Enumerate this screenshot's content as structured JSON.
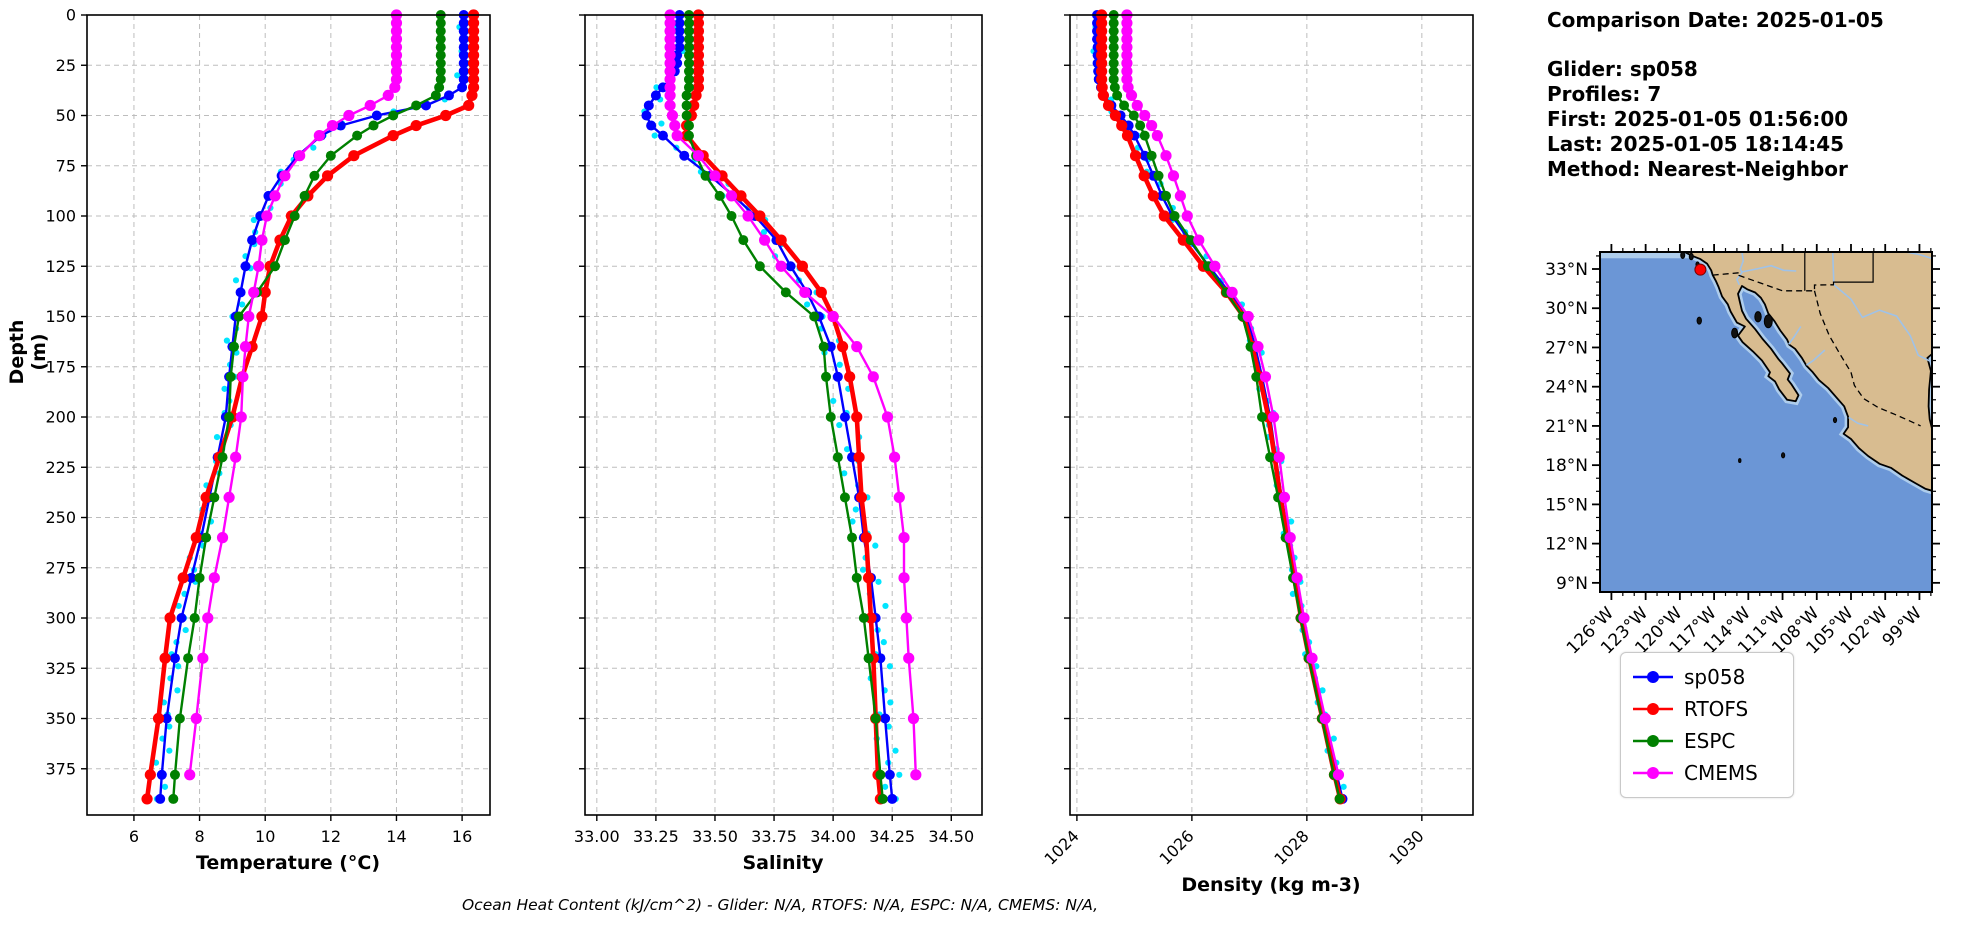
{
  "info_panel": {
    "comparison_date": "Comparison Date: 2025-01-05",
    "glider": "Glider: sp058",
    "profiles": "Profiles: 7",
    "first": "First: 2025-01-05 01:56:00",
    "last": "Last: 2025-01-05 18:14:45",
    "method": "Method: Nearest-Neighbor"
  },
  "bottom_note": "Ocean Heat Content (kJ/cm^2) - Glider: N/A,  RTOFS: N/A,  ESPC: N/A,  CMEMS: N/A,",
  "legend": {
    "items": [
      {
        "label": "sp058",
        "color": "#0000ff"
      },
      {
        "label": "RTOFS",
        "color": "#ff0000"
      },
      {
        "label": "ESPC",
        "color": "#008000"
      },
      {
        "label": "CMEMS",
        "color": "#ff00ff"
      }
    ]
  },
  "chart_data": {
    "type": "line",
    "ylabel": "Depth (m)",
    "ylim": [
      0,
      398
    ],
    "yticks": [
      0,
      25,
      50,
      75,
      100,
      125,
      150,
      175,
      200,
      225,
      250,
      275,
      300,
      325,
      350,
      375
    ],
    "grid": true,
    "depths": [
      0,
      4,
      8,
      12,
      16,
      20,
      24,
      28,
      32,
      36,
      40,
      45,
      50,
      55,
      60,
      70,
      80,
      90,
      100,
      112,
      125,
      138,
      150,
      165,
      180,
      200,
      220,
      240,
      260,
      280,
      300,
      320,
      350,
      378,
      390
    ],
    "series_style": {
      "sp058": {
        "color": "#0000ff",
        "lw": 2.4,
        "r": 5.0
      },
      "RTOFS": {
        "color": "#ff0000",
        "lw": 4.6,
        "r": 5.6
      },
      "ESPC": {
        "color": "#008000",
        "lw": 2.4,
        "r": 5.0
      },
      "CMEMS": {
        "color": "#ff00ff",
        "lw": 2.4,
        "r": 5.6
      }
    },
    "charts": [
      {
        "id": "temperature",
        "xlabel": "Temperature (°C)",
        "xlim": [
          4.57,
          16.85
        ],
        "xticks": [
          6,
          8,
          10,
          12,
          14,
          16
        ],
        "xtick_labels": [
          "6",
          "8",
          "10",
          "12",
          "14",
          "16"
        ],
        "rotate_labels": false,
        "series": {
          "sp058": [
            16.05,
            16.05,
            16.05,
            16.05,
            16.05,
            16.05,
            16.05,
            16.05,
            16.05,
            16.0,
            15.6,
            14.9,
            13.4,
            12.3,
            11.7,
            11.0,
            10.5,
            10.1,
            9.85,
            9.6,
            9.4,
            9.25,
            9.1,
            9.0,
            8.9,
            8.8,
            8.55,
            8.3,
            8.05,
            7.75,
            7.45,
            7.25,
            7.0,
            6.85,
            6.8
          ],
          "RTOFS": [
            16.35,
            16.35,
            16.35,
            16.35,
            16.35,
            16.35,
            16.35,
            16.35,
            16.35,
            16.35,
            16.3,
            16.2,
            15.5,
            14.6,
            13.9,
            12.7,
            11.9,
            11.3,
            10.8,
            10.45,
            10.15,
            10.0,
            9.9,
            9.6,
            9.3,
            9.0,
            8.6,
            8.2,
            7.9,
            7.5,
            7.1,
            6.95,
            6.75,
            6.5,
            6.4
          ],
          "ESPC": [
            15.35,
            15.35,
            15.35,
            15.35,
            15.35,
            15.35,
            15.35,
            15.35,
            15.35,
            15.3,
            15.2,
            14.6,
            13.9,
            13.3,
            12.8,
            12.0,
            11.5,
            11.2,
            10.9,
            10.6,
            10.3,
            9.75,
            9.2,
            9.05,
            8.95,
            8.9,
            8.7,
            8.45,
            8.2,
            8.0,
            7.85,
            7.65,
            7.4,
            7.25,
            7.2
          ],
          "CMEMS": [
            14.0,
            14.0,
            14.0,
            14.0,
            14.0,
            14.0,
            14.0,
            14.0,
            14.0,
            13.95,
            13.75,
            13.2,
            12.55,
            12.05,
            11.65,
            11.05,
            10.6,
            10.3,
            10.05,
            9.9,
            9.8,
            9.65,
            9.5,
            9.4,
            9.32,
            9.27,
            9.1,
            8.9,
            8.7,
            8.45,
            8.25,
            8.1,
            7.9,
            7.7,
            null
          ]
        }
      },
      {
        "id": "salinity",
        "xlabel": "Salinity",
        "xlim": [
          32.95,
          34.63
        ],
        "xticks": [
          33.0,
          33.25,
          33.5,
          33.75,
          34.0,
          34.25,
          34.5
        ],
        "xtick_labels": [
          "33.00",
          "33.25",
          "33.50",
          "33.75",
          "34.00",
          "34.25",
          "34.50"
        ],
        "rotate_labels": false,
        "series": {
          "sp058": [
            33.35,
            33.35,
            33.35,
            33.35,
            33.35,
            33.34,
            33.34,
            33.33,
            33.31,
            33.28,
            33.25,
            33.22,
            33.21,
            33.23,
            33.28,
            33.37,
            33.48,
            33.58,
            33.67,
            33.76,
            33.82,
            33.89,
            33.94,
            33.99,
            34.02,
            34.05,
            34.08,
            34.11,
            34.13,
            34.16,
            34.18,
            34.2,
            34.22,
            34.24,
            34.25
          ],
          "RTOFS": [
            33.43,
            33.43,
            33.43,
            33.43,
            33.43,
            33.43,
            33.43,
            33.43,
            33.43,
            33.43,
            33.42,
            33.41,
            33.4,
            33.38,
            33.38,
            33.45,
            33.53,
            33.61,
            33.69,
            33.78,
            33.87,
            33.95,
            34.0,
            34.04,
            34.07,
            34.1,
            34.11,
            34.12,
            34.14,
            34.15,
            34.16,
            34.17,
            34.18,
            34.19,
            34.2
          ],
          "ESPC": [
            33.39,
            33.39,
            33.39,
            33.39,
            33.39,
            33.39,
            33.39,
            33.39,
            33.39,
            33.39,
            33.38,
            33.38,
            33.38,
            33.39,
            33.39,
            33.42,
            33.46,
            33.52,
            33.57,
            33.62,
            33.69,
            33.8,
            33.92,
            33.96,
            33.97,
            33.99,
            34.02,
            34.05,
            34.08,
            34.1,
            34.13,
            34.15,
            34.18,
            34.2,
            34.21
          ],
          "CMEMS": [
            33.31,
            33.31,
            33.31,
            33.31,
            33.31,
            33.31,
            33.31,
            33.31,
            33.31,
            33.31,
            33.31,
            33.31,
            33.32,
            33.33,
            33.34,
            33.43,
            33.5,
            33.57,
            33.64,
            33.71,
            33.78,
            33.88,
            34.0,
            34.1,
            34.17,
            34.23,
            34.26,
            34.28,
            34.3,
            34.3,
            34.31,
            34.32,
            34.34,
            34.35,
            null
          ]
        }
      },
      {
        "id": "density",
        "xlabel": "Density (kg m-3)",
        "xlim": [
          1023.88,
          1030.89
        ],
        "xticks": [
          1024,
          1026,
          1028,
          1030
        ],
        "xtick_labels": [
          "1024",
          "1026",
          "1028",
          "1030"
        ],
        "rotate_labels": true,
        "series": {
          "sp058": [
            1024.35,
            1024.35,
            1024.35,
            1024.35,
            1024.36,
            1024.36,
            1024.36,
            1024.37,
            1024.38,
            1024.42,
            1024.47,
            1024.6,
            1024.76,
            1024.9,
            1025.0,
            1025.18,
            1025.33,
            1025.48,
            1025.66,
            1025.95,
            1026.3,
            1026.65,
            1026.95,
            1027.1,
            1027.22,
            1027.36,
            1027.46,
            1027.56,
            1027.68,
            1027.8,
            1027.93,
            1028.07,
            1028.3,
            1028.52,
            1028.62
          ],
          "RTOFS": [
            1024.43,
            1024.43,
            1024.43,
            1024.43,
            1024.43,
            1024.43,
            1024.43,
            1024.43,
            1024.43,
            1024.44,
            1024.46,
            1024.55,
            1024.67,
            1024.78,
            1024.88,
            1025.02,
            1025.17,
            1025.33,
            1025.52,
            1025.85,
            1026.2,
            1026.6,
            1026.9,
            1027.05,
            1027.18,
            1027.33,
            1027.44,
            1027.54,
            1027.66,
            1027.78,
            1027.9,
            1028.04,
            1028.27,
            1028.48,
            1028.58
          ],
          "ESPC": [
            1024.64,
            1024.64,
            1024.64,
            1024.64,
            1024.64,
            1024.64,
            1024.64,
            1024.64,
            1024.64,
            1024.66,
            1024.7,
            1024.82,
            1024.99,
            1025.1,
            1025.18,
            1025.3,
            1025.42,
            1025.55,
            1025.7,
            1025.98,
            1026.28,
            1026.6,
            1026.88,
            1027.02,
            1027.12,
            1027.22,
            1027.36,
            1027.5,
            1027.63,
            1027.76,
            1027.89,
            1028.03,
            1028.26,
            1028.47,
            1028.57
          ],
          "CMEMS": [
            1024.87,
            1024.87,
            1024.87,
            1024.87,
            1024.87,
            1024.87,
            1024.87,
            1024.87,
            1024.87,
            1024.89,
            1024.95,
            1025.05,
            1025.18,
            1025.3,
            1025.4,
            1025.55,
            1025.68,
            1025.8,
            1025.92,
            1026.12,
            1026.4,
            1026.7,
            1026.98,
            1027.15,
            1027.28,
            1027.42,
            1027.52,
            1027.61,
            1027.71,
            1027.83,
            1027.95,
            1028.09,
            1028.32,
            1028.55,
            null
          ]
        }
      }
    ],
    "observations": {
      "label": "glider raw profiles",
      "color": "#00e5ff",
      "depth_step": 6,
      "scales": {
        "temperature": 0.22,
        "salinity": 0.05,
        "density": 0.1
      },
      "jitter": [
        0.2,
        -0.6,
        0.9,
        -0.3,
        0.5,
        -0.9,
        0.1,
        0.7,
        -0.4,
        -0.8,
        0.35,
        0.85,
        -0.15,
        -0.55,
        0.6,
        -0.25,
        0.95,
        -0.7,
        0.05,
        0.45,
        -0.35,
        0.75,
        -0.95,
        0.15,
        0.55,
        -0.45,
        0.25,
        -0.85,
        0.65,
        -0.05,
        0.8,
        -0.5,
        0.3,
        -0.2,
        0.9,
        -0.65,
        0.4,
        -0.1,
        0.7,
        -0.75
      ]
    }
  },
  "map": {
    "lat_ticks": [
      {
        "label": "33°N",
        "value": 33
      },
      {
        "label": "30°N",
        "value": 30
      },
      {
        "label": "27°N",
        "value": 27
      },
      {
        "label": "24°N",
        "value": 24
      },
      {
        "label": "21°N",
        "value": 21
      },
      {
        "label": "18°N",
        "value": 18
      },
      {
        "label": "15°N",
        "value": 15
      },
      {
        "label": "12°N",
        "value": 12
      },
      {
        "label": "9°N",
        "value": 9
      }
    ],
    "lon_ticks": [
      {
        "label": "126°W",
        "value": -126
      },
      {
        "label": "123°W",
        "value": -123
      },
      {
        "label": "120°W",
        "value": -120
      },
      {
        "label": "117°W",
        "value": -117
      },
      {
        "label": "114°W",
        "value": -114
      },
      {
        "label": "111°W",
        "value": -111
      },
      {
        "label": "108°W",
        "value": -108
      },
      {
        "label": "105°W",
        "value": -105
      },
      {
        "label": "102°W",
        "value": -102
      },
      {
        "label": "99°W",
        "value": -99
      }
    ],
    "lat_range": [
      34.3,
      8.3
    ],
    "lon_range": [
      -127.0,
      -97.9
    ],
    "marker": {
      "lat": 32.95,
      "lon": -118.2,
      "color": "#ff0000"
    },
    "colors": {
      "ocean": "#6b96d6",
      "land": "#d8bc90",
      "shelf": "#aecdec",
      "coast": "#000000"
    }
  }
}
